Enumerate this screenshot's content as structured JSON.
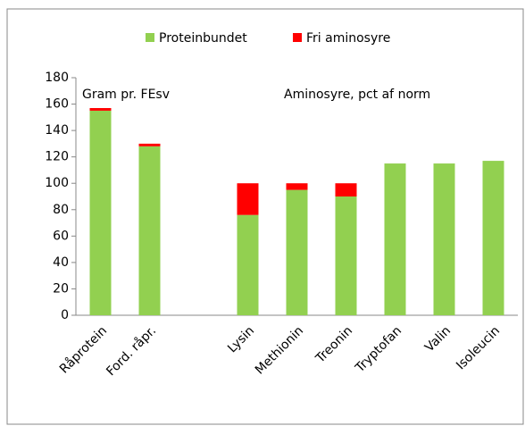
{
  "chart_data": {
    "type": "bar",
    "stacked": true,
    "categories": [
      "Råprotein",
      "Ford. råpr.",
      null,
      "Lysin",
      "Methionin",
      "Treonin",
      "Tryptofan",
      "Valin",
      "Isoleucin"
    ],
    "series": [
      {
        "name": "Proteinbundet",
        "color": "#92d050",
        "values": [
          155,
          128,
          null,
          76,
          95,
          90,
          115,
          115,
          117
        ]
      },
      {
        "name": "Fri aminosyre",
        "color": "#ff0000",
        "values": [
          2,
          2,
          null,
          24,
          5,
          10,
          0,
          0,
          0
        ]
      }
    ],
    "annotations": [
      "Gram pr. FEsv",
      "Aminosyre, pct af norm"
    ],
    "ylim": [
      0,
      180
    ],
    "yticks": [
      0,
      20,
      40,
      60,
      80,
      100,
      120,
      140,
      160,
      180
    ],
    "grid": false,
    "legend": "top"
  }
}
